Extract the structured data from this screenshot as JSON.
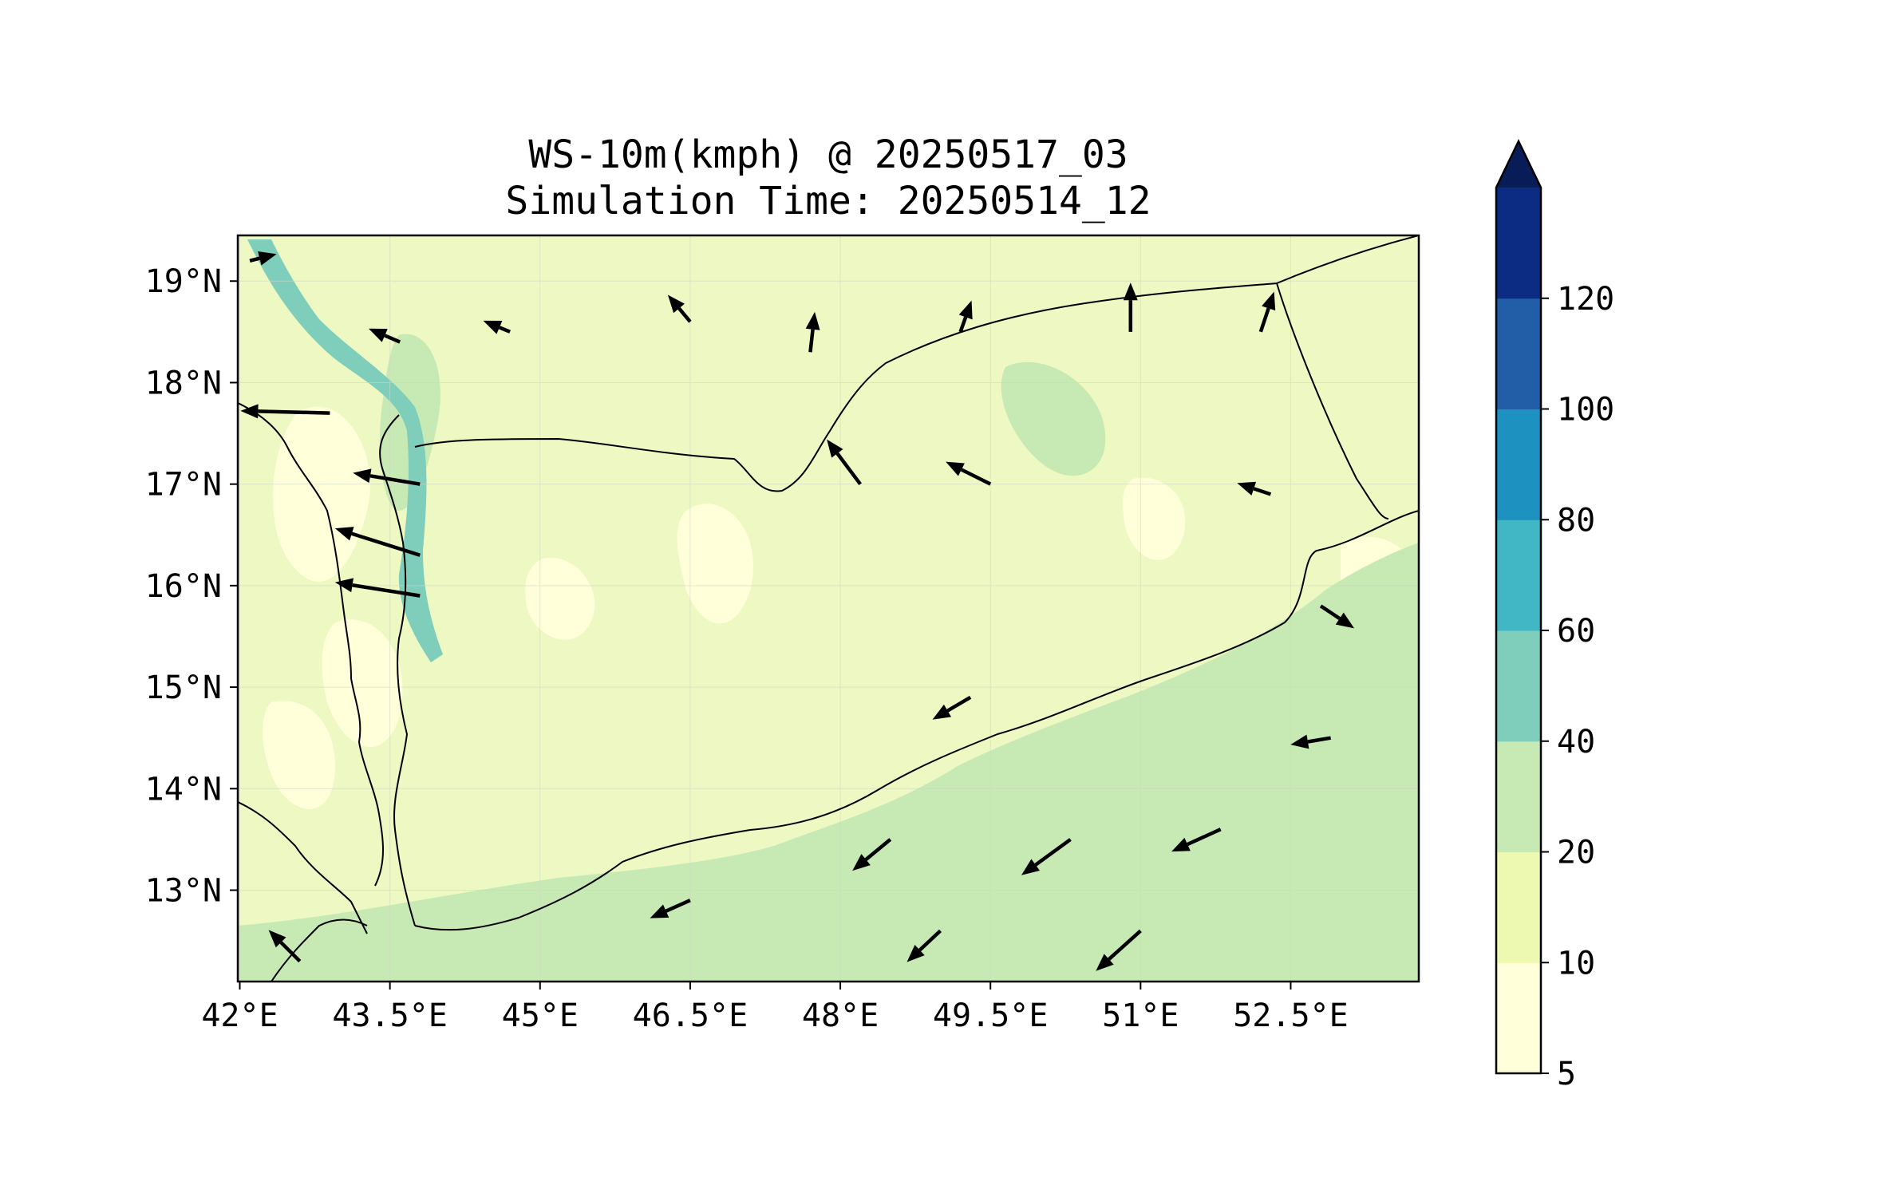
{
  "title_line1": "WS-10m(kmph) @ 20250517_03",
  "title_line2": "Simulation Time: 20250514_12",
  "map": {
    "lon_range": [
      41.98,
      53.78
    ],
    "lat_range": [
      12.1,
      19.45
    ],
    "lon_ticks": [
      "42°E",
      "43.5°E",
      "45°E",
      "46.5°E",
      "48°E",
      "49.5°E",
      "51°E",
      "52.5°E"
    ],
    "lat_ticks": [
      "19°N",
      "18°N",
      "17°N",
      "16°N",
      "15°N",
      "14°N",
      "13°N"
    ],
    "gridlines": true,
    "fill_color": "#eef8c2"
  },
  "colorbar": {
    "levels": [
      "5",
      "10",
      "20",
      "40",
      "60",
      "80",
      "100",
      "120"
    ],
    "colors": [
      "#ffffd9",
      "#edf8b1",
      "#c7e9b4",
      "#7fcdbb",
      "#41b6c4",
      "#1d91c0",
      "#225ea8",
      "#0c2c84"
    ],
    "extend_color": "#081d58",
    "extend": "max"
  },
  "chart_data": {
    "type": "vector-field",
    "variable": "WS-10m(kmph)",
    "x": "lon",
    "y": "lat",
    "x_ticks": [
      42,
      43.5,
      45,
      46.5,
      48,
      49.5,
      51,
      52.5
    ],
    "y_ticks": [
      19,
      18,
      17,
      16,
      15,
      14,
      13
    ],
    "xlim": [
      41.98,
      53.78
    ],
    "ylim": [
      12.1,
      19.45
    ],
    "vectors": [
      {
        "lon": 42.1,
        "lat": 19.2,
        "u": 12,
        "v": 3
      },
      {
        "lon": 43.6,
        "lat": 18.4,
        "u": -14,
        "v": 6
      },
      {
        "lon": 44.7,
        "lat": 18.5,
        "u": -12,
        "v": 5
      },
      {
        "lon": 46.5,
        "lat": 18.6,
        "u": -10,
        "v": 12
      },
      {
        "lon": 47.7,
        "lat": 18.3,
        "u": 2,
        "v": 18
      },
      {
        "lon": 49.2,
        "lat": 18.5,
        "u": 5,
        "v": 14
      },
      {
        "lon": 50.9,
        "lat": 18.5,
        "u": 0,
        "v": 22
      },
      {
        "lon": 52.2,
        "lat": 18.5,
        "u": 6,
        "v": 18
      },
      {
        "lon": 42.9,
        "lat": 17.7,
        "u": -40,
        "v": 1
      },
      {
        "lon": 43.8,
        "lat": 17.0,
        "u": -30,
        "v": 5
      },
      {
        "lon": 43.8,
        "lat": 16.3,
        "u": -38,
        "v": 12
      },
      {
        "lon": 43.8,
        "lat": 15.9,
        "u": -38,
        "v": 6
      },
      {
        "lon": 48.2,
        "lat": 17.0,
        "u": -15,
        "v": 20
      },
      {
        "lon": 49.5,
        "lat": 17.0,
        "u": -20,
        "v": 10
      },
      {
        "lon": 52.3,
        "lat": 16.9,
        "u": -15,
        "v": 5
      },
      {
        "lon": 52.8,
        "lat": 15.8,
        "u": 15,
        "v": -10
      },
      {
        "lon": 49.3,
        "lat": 14.9,
        "u": -17,
        "v": -10
      },
      {
        "lon": 48.5,
        "lat": 13.5,
        "u": -17,
        "v": -14
      },
      {
        "lon": 50.3,
        "lat": 13.5,
        "u": -22,
        "v": -16
      },
      {
        "lon": 51.8,
        "lat": 13.6,
        "u": -22,
        "v": -10
      },
      {
        "lon": 52.9,
        "lat": 14.5,
        "u": -18,
        "v": -3
      },
      {
        "lon": 46.5,
        "lat": 12.9,
        "u": -18,
        "v": -8
      },
      {
        "lon": 49.0,
        "lat": 12.6,
        "u": -15,
        "v": -14
      },
      {
        "lon": 51.0,
        "lat": 12.6,
        "u": -20,
        "v": -18
      },
      {
        "lon": 42.6,
        "lat": 12.3,
        "u": -14,
        "v": 14
      }
    ]
  }
}
